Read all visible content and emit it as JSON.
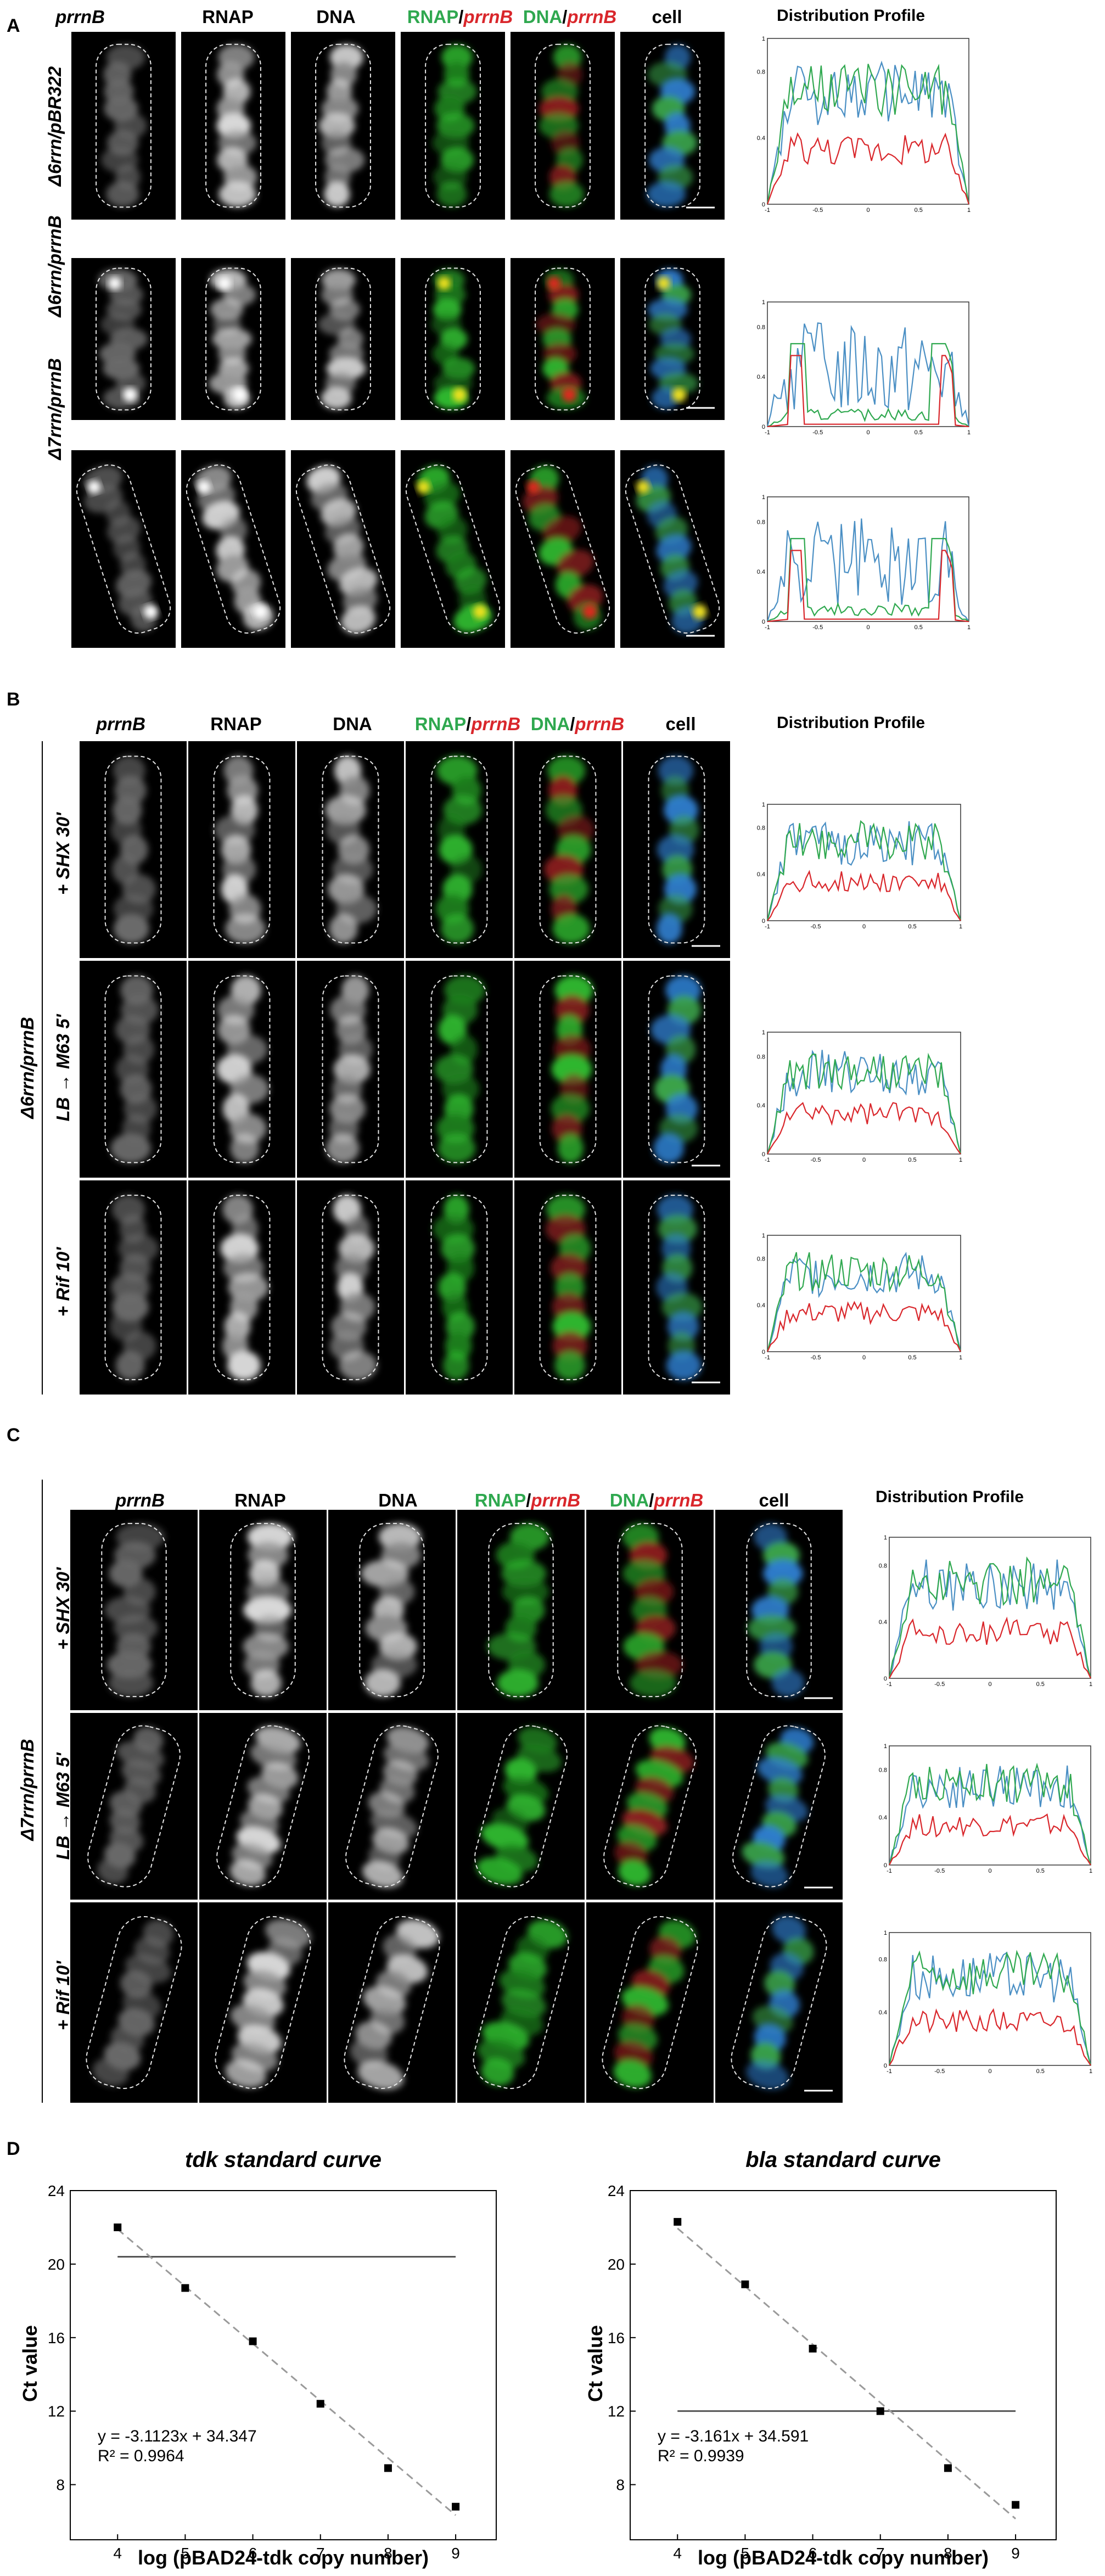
{
  "panels": {
    "A": {
      "letter": "A",
      "profile_title": "Distribution Profile",
      "rows": [
        "Δ6rrn/pBR322",
        "Δ6rrn/prrnB",
        "Δ7rrn/prrnB"
      ]
    },
    "B": {
      "letter": "B",
      "profile_title": "Distribution Profile",
      "group_label": "Δ6rrn/prrnB",
      "rows": [
        "+ SHX 30'",
        "LB → M63 5'",
        "+ Rif 10'"
      ]
    },
    "C": {
      "letter": "C",
      "profile_title": "Distribution Profile",
      "group_label": "Δ7rrn/prrnB",
      "rows": [
        "+ SHX 30'",
        "LB → M63 5'",
        "+ Rif 10'"
      ]
    },
    "D": {
      "letter": "D"
    }
  },
  "channels": {
    "prrnB": "prrnB",
    "rnap": "RNAP",
    "dna": "DNA",
    "slash": "/",
    "cell": "cell"
  },
  "profile_axis": {
    "x_ticks": [
      "-1",
      "-0.5",
      "0",
      "0.5",
      "1"
    ],
    "y_ticks": [
      "0",
      "0.4",
      "0.8",
      "1"
    ]
  },
  "colors": {
    "rnap_green": "#2fa84f",
    "prrnB_red": "#d9262b",
    "dna_blue": "#4a8fc4"
  },
  "chart_data": [
    {
      "type": "scatter",
      "title": "tdk standard curve",
      "xlabel": "log (pBAD24-tdk copy number)",
      "ylabel": "Ct value",
      "x": [
        4,
        5,
        6,
        7,
        8,
        9
      ],
      "y": [
        22.0,
        18.7,
        15.8,
        12.4,
        8.9,
        6.8
      ],
      "xlim": [
        3.3,
        9.6
      ],
      "ylim": [
        5,
        24
      ],
      "x_ticks": [
        "4",
        "5",
        "6",
        "7",
        "8",
        "9"
      ],
      "y_ticks": [
        "8",
        "12",
        "16",
        "20",
        "24"
      ],
      "fit": {
        "slope": -3.1123,
        "intercept": 34.347
      },
      "threshold": 20.4,
      "equation": "y = -3.1123x + 34.347",
      "r2": "R² = 0.9964"
    },
    {
      "type": "scatter",
      "title": "bla standard curve",
      "xlabel": "log (pBAD24-tdk copy number)",
      "ylabel": "Ct value",
      "x": [
        4,
        5,
        6,
        7,
        8,
        9
      ],
      "y": [
        22.3,
        18.9,
        15.4,
        12.0,
        8.9,
        6.9
      ],
      "xlim": [
        3.3,
        9.6
      ],
      "ylim": [
        5,
        24
      ],
      "x_ticks": [
        "4",
        "5",
        "6",
        "7",
        "8",
        "9"
      ],
      "y_ticks": [
        "8",
        "12",
        "16",
        "20",
        "24"
      ],
      "fit": {
        "slope": -3.161,
        "intercept": 34.591
      },
      "threshold": 12.0,
      "equation": "y = -3.161x + 34.591",
      "r2": "R² = 0.9939"
    }
  ]
}
